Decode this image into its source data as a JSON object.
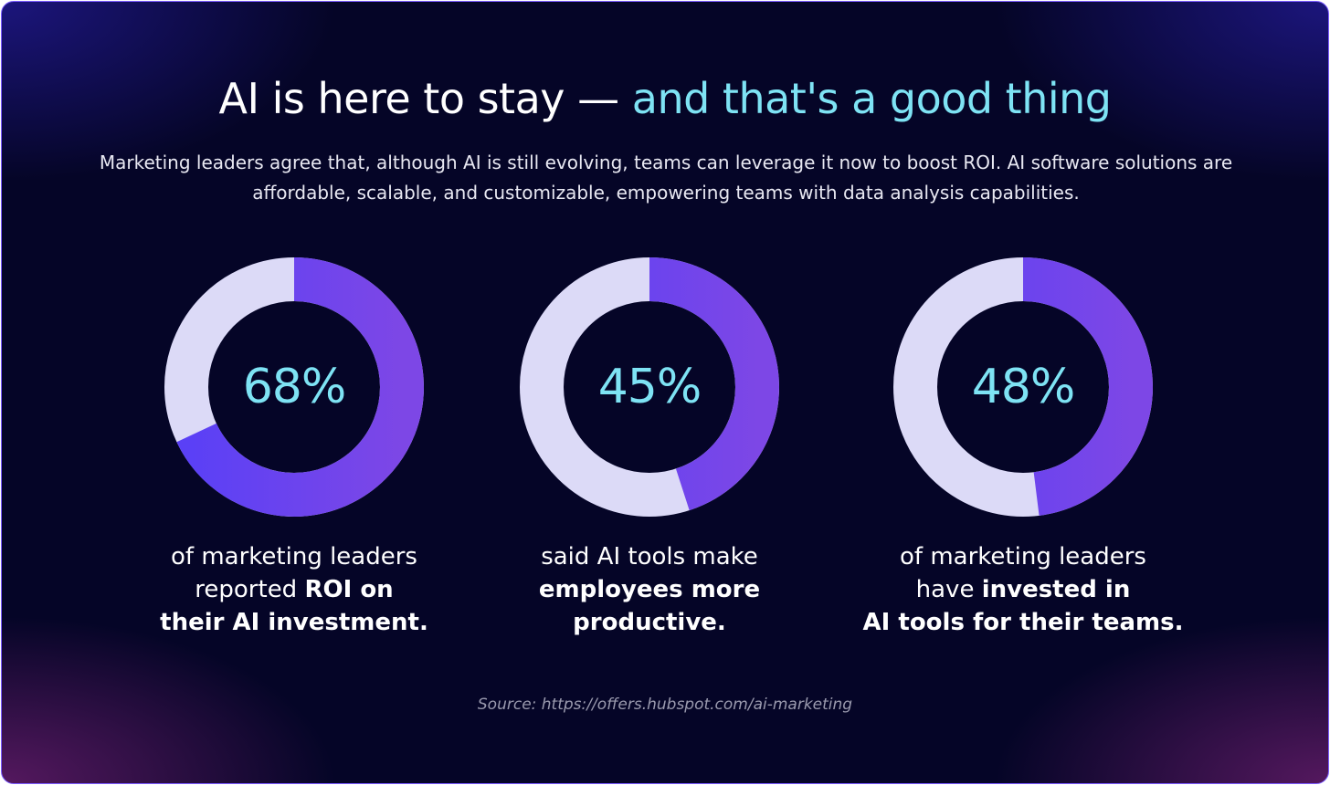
{
  "title": {
    "part1": "AI is here to stay — ",
    "part2": "and that's a good thing"
  },
  "subtitle": "Marketing leaders agree that, although AI is still evolving, teams can leverage it now to boost ROI. AI software solutions are affordable, scalable, and customizable, empowering teams with data analysis capabilities.",
  "colors": {
    "background": "#050527",
    "track": "#dcdaf7",
    "fill_start": "#5a40f6",
    "fill_end": "#7d47e6",
    "accent": "#7ee3f4"
  },
  "chart_data": [
    {
      "type": "pie",
      "value": 68,
      "label": "68%",
      "caption_lines": [
        [
          {
            "text": "of marketing leaders",
            "bold": false
          }
        ],
        [
          {
            "text": "reported ",
            "bold": false
          },
          {
            "text": "ROI on",
            "bold": true
          }
        ],
        [
          {
            "text": "their AI investment.",
            "bold": true
          }
        ]
      ]
    },
    {
      "type": "pie",
      "value": 45,
      "label": "45%",
      "caption_lines": [
        [
          {
            "text": "said AI tools make",
            "bold": false
          }
        ],
        [
          {
            "text": "employees more",
            "bold": true
          }
        ],
        [
          {
            "text": "productive.",
            "bold": true
          }
        ]
      ]
    },
    {
      "type": "pie",
      "value": 48,
      "label": "48%",
      "caption_lines": [
        [
          {
            "text": "of marketing leaders",
            "bold": false
          }
        ],
        [
          {
            "text": "have ",
            "bold": false
          },
          {
            "text": "invested in",
            "bold": true
          }
        ],
        [
          {
            "text": "AI tools for their teams.",
            "bold": true
          }
        ]
      ]
    }
  ],
  "source": "Source: https://offers.hubspot.com/ai-marketing"
}
